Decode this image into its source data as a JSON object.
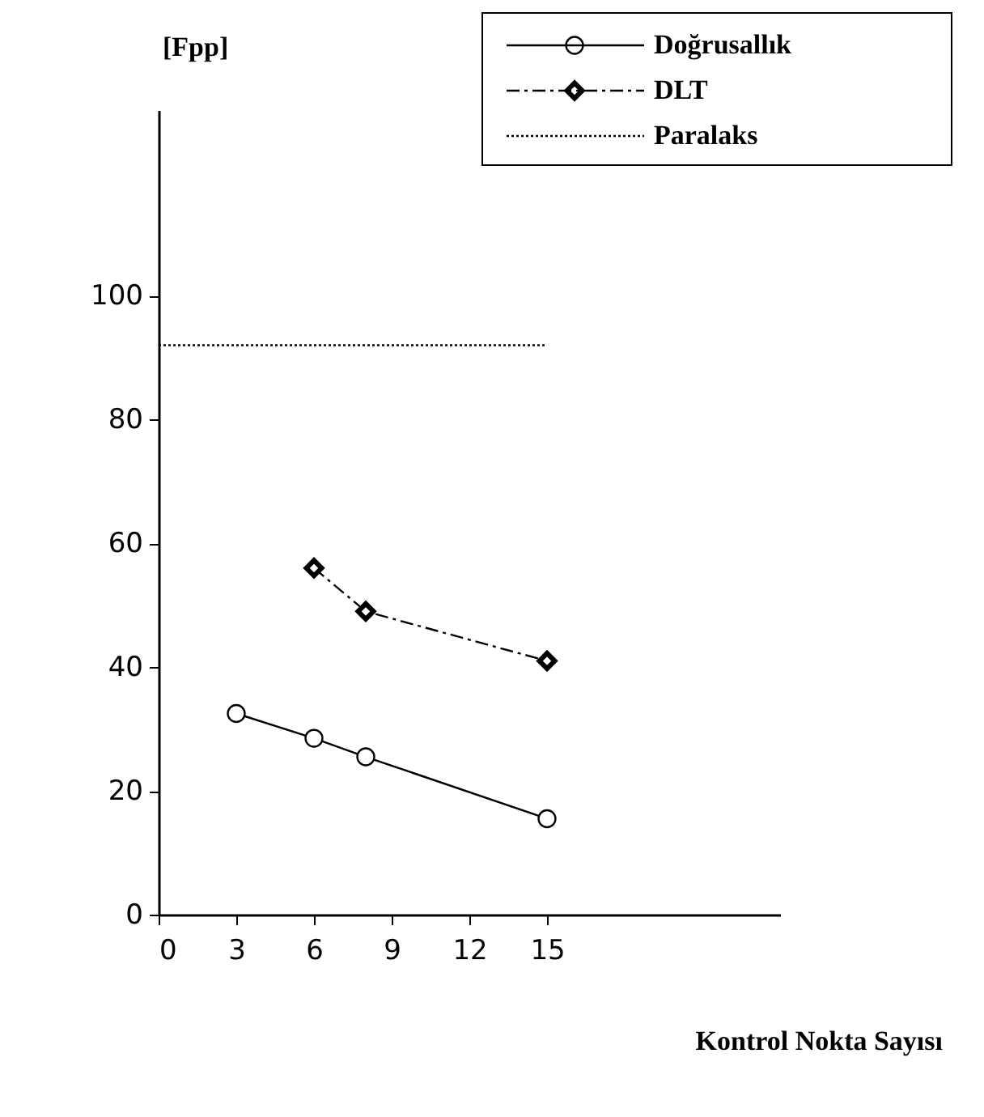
{
  "chart_data": {
    "type": "line",
    "xlabel": "Kontrol Nokta Sayısı",
    "ylabel": "[Fpp]",
    "xlim": [
      0,
      24
    ],
    "ylim": [
      0,
      130
    ],
    "xticks": [
      0,
      3,
      6,
      9,
      12,
      15
    ],
    "yticks": [
      0,
      20,
      40,
      60,
      80,
      100
    ],
    "grid": false,
    "legend": "top right",
    "series": [
      {
        "name": "Doğrusallık",
        "color": "#000000",
        "x": [
          3,
          6,
          8,
          15
        ],
        "values": [
          32.5,
          28.5,
          25.5,
          15.5
        ],
        "marker": "circle",
        "line_style": "solid"
      },
      {
        "name": "DLT",
        "color": "#000000",
        "x": [
          6,
          8,
          15
        ],
        "values": [
          56,
          49,
          41
        ],
        "marker": "diamond",
        "line_style": "dashed"
      },
      {
        "name": "Paralaks",
        "color": "#000000",
        "x": [
          0,
          15
        ],
        "values": [
          92,
          92
        ],
        "marker": "none",
        "line_style": "dotted"
      }
    ]
  }
}
